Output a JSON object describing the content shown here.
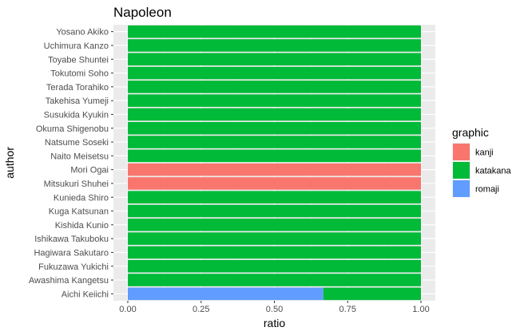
{
  "chart_data": {
    "type": "bar",
    "orientation": "horizontal",
    "stacked": true,
    "title": "Napoleon",
    "xlabel": "ratio",
    "ylabel": "author",
    "xlim": [
      0,
      1
    ],
    "xticks": [
      "0.00",
      "0.25",
      "0.50",
      "0.75",
      "1.00"
    ],
    "categories": [
      "Yosano Akiko",
      "Uchimura Kanzo",
      "Toyabe Shuntei",
      "Tokutomi Soho",
      "Terada Torahiko",
      "Takehisa Yumeji",
      "Susukida Kyukin",
      "Okuma Shigenobu",
      "Natsume Soseki",
      "Naito Meisetsu",
      "Mori Ogai",
      "Mitsukuri Shuhei",
      "Kunieda Shiro",
      "Kuga Katsunan",
      "Kishida Kunio",
      "Ishikawa Takuboku",
      "Hagiwara Sakutaro",
      "Fukuzawa Yukichi",
      "Awashima Kangetsu",
      "Aichi Keiichi"
    ],
    "legend": {
      "title": "graphic",
      "position": "right"
    },
    "grid": true,
    "series": [
      {
        "name": "kanji",
        "color": "#F8766D",
        "values": [
          0,
          0,
          0,
          0,
          0,
          0,
          0,
          0,
          0,
          0,
          1,
          1,
          0,
          0,
          0,
          0,
          0,
          0,
          0,
          0
        ]
      },
      {
        "name": "katakana",
        "color": "#00BA38",
        "values": [
          1,
          1,
          1,
          1,
          1,
          1,
          1,
          1,
          1,
          1,
          0,
          0,
          1,
          1,
          1,
          1,
          1,
          1,
          1,
          0.333
        ]
      },
      {
        "name": "romaji",
        "color": "#619CFF",
        "values": [
          0,
          0,
          0,
          0,
          0,
          0,
          0,
          0,
          0,
          0,
          0,
          0,
          0,
          0,
          0,
          0,
          0,
          0,
          0,
          0.667
        ]
      }
    ]
  }
}
